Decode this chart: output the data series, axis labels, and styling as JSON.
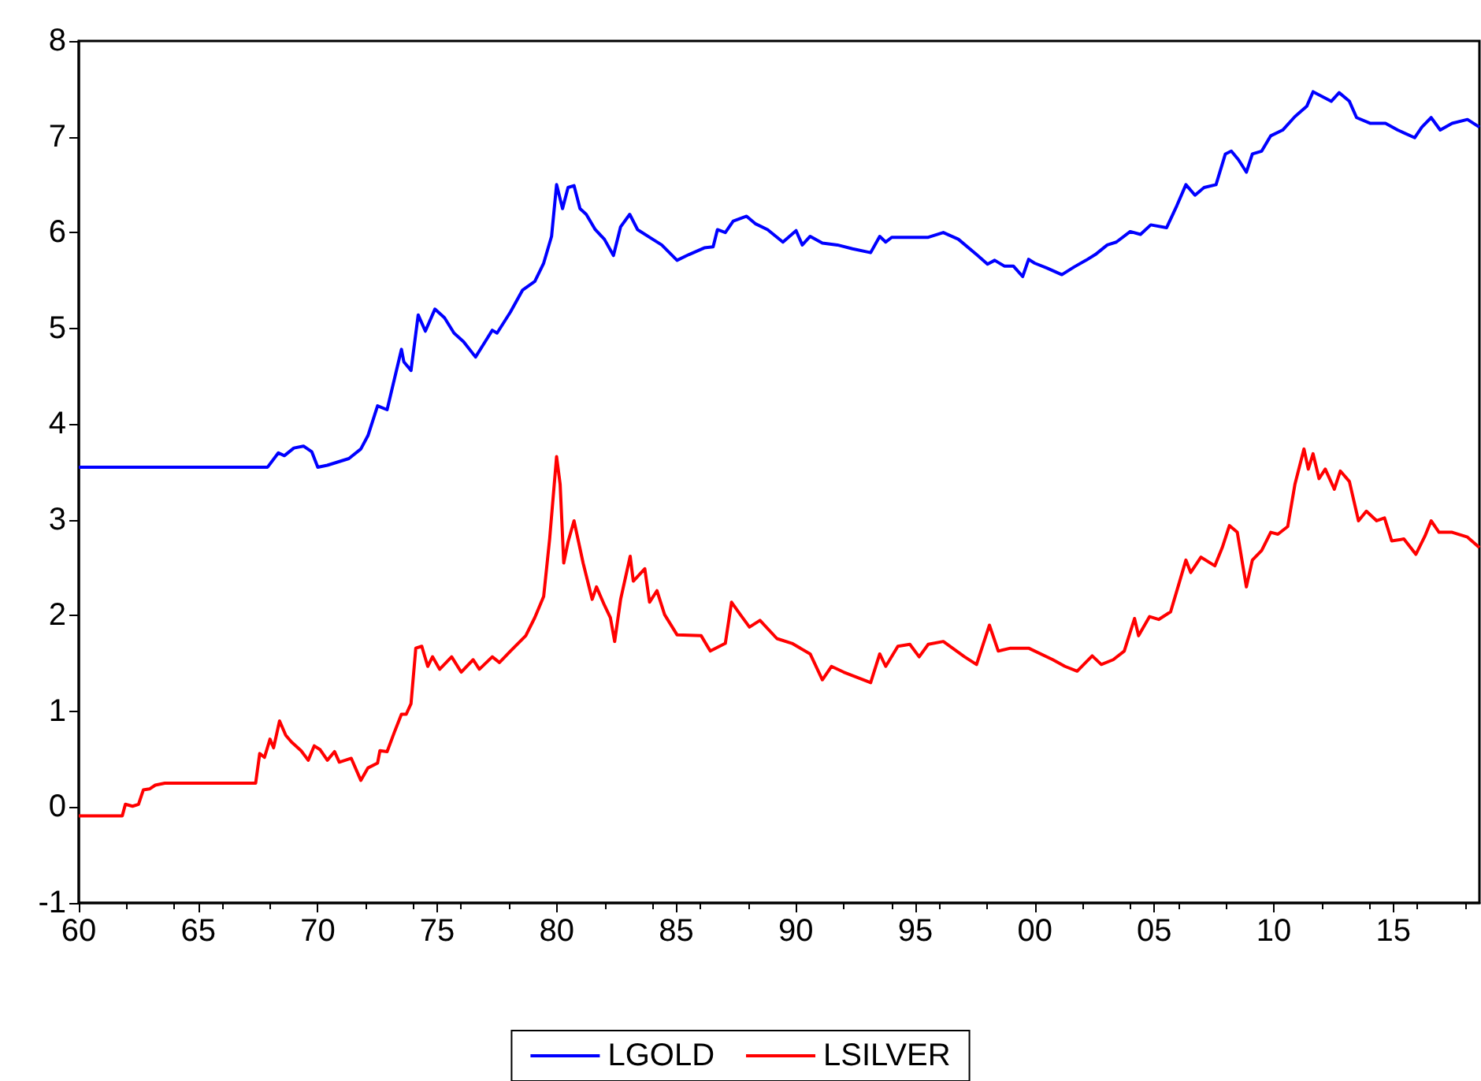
{
  "chart_data": {
    "type": "line",
    "xlim": [
      1960,
      2018.6
    ],
    "ylim": [
      -1,
      8
    ],
    "xticks": [
      {
        "value": 1960,
        "label": "60"
      },
      {
        "value": 1965,
        "label": "65"
      },
      {
        "value": 1970,
        "label": "70"
      },
      {
        "value": 1975,
        "label": "75"
      },
      {
        "value": 1980,
        "label": "80"
      },
      {
        "value": 1985,
        "label": "85"
      },
      {
        "value": 1990,
        "label": "90"
      },
      {
        "value": 1995,
        "label": "95"
      },
      {
        "value": 2000,
        "label": "00"
      },
      {
        "value": 2005,
        "label": "05"
      },
      {
        "value": 2010,
        "label": "10"
      },
      {
        "value": 2015,
        "label": "15"
      }
    ],
    "yticks": [
      -1,
      0,
      1,
      2,
      3,
      4,
      5,
      6,
      7,
      8
    ],
    "grid": false,
    "legend": "bottom",
    "marker": "none",
    "line_style": "solid",
    "series": [
      {
        "name": "LGOLD",
        "color": "#0000ff",
        "x": [
          1960,
          1967.9,
          1968.35,
          1968.6,
          1969.0,
          1969.4,
          1969.75,
          1970.0,
          1970.4,
          1971.3,
          1971.8,
          1972.1,
          1972.5,
          1972.9,
          1973.5,
          1973.6,
          1973.9,
          1974.2,
          1974.5,
          1974.9,
          1975.3,
          1975.7,
          1976.1,
          1976.6,
          1977.0,
          1977.3,
          1977.5,
          1978.06,
          1978.57,
          1979.08,
          1979.45,
          1979.78,
          1979.99,
          1980.24,
          1980.47,
          1980.72,
          1980.97,
          1981.23,
          1981.61,
          1981.99,
          1982.37,
          1982.67,
          1983.05,
          1983.38,
          1984.01,
          1984.39,
          1985.03,
          1985.53,
          1986.17,
          1986.54,
          1986.72,
          1987.05,
          1987.38,
          1987.94,
          1988.32,
          1988.82,
          1989.46,
          1990.01,
          1990.27,
          1990.6,
          1991.11,
          1991.74,
          1992.37,
          1993.13,
          1993.51,
          1993.76,
          1994.01,
          1994.77,
          1995.54,
          1996.17,
          1996.8,
          1997.56,
          1998.02,
          1998.32,
          1998.72,
          1999.1,
          1999.49,
          1999.74,
          1999.99,
          2000.5,
          2001.13,
          2001.64,
          2002.14,
          2002.53,
          2003.03,
          2003.41,
          2003.99,
          2004.42,
          2004.85,
          2005.51,
          2005.94,
          2006.32,
          2006.7,
          2007.08,
          2007.58,
          2007.97,
          2008.22,
          2008.52,
          2008.85,
          2009.1,
          2009.49,
          2009.87,
          2010.37,
          2010.88,
          2011.38,
          2011.64,
          2012.02,
          2012.4,
          2012.73,
          2013.16,
          2013.46,
          2014.04,
          2014.67,
          2015.18,
          2015.89,
          2016.19,
          2016.58,
          2016.96,
          2017.46,
          2018.1,
          2018.6
        ],
        "values": [
          3.55,
          3.55,
          3.7,
          3.67,
          3.75,
          3.77,
          3.71,
          3.55,
          3.57,
          3.64,
          3.74,
          3.88,
          4.19,
          4.15,
          4.78,
          4.65,
          4.56,
          5.14,
          4.97,
          5.2,
          5.11,
          4.95,
          4.86,
          4.7,
          4.86,
          4.98,
          4.95,
          5.17,
          5.4,
          5.49,
          5.68,
          5.96,
          6.5,
          6.25,
          6.47,
          6.49,
          6.25,
          6.19,
          6.03,
          5.93,
          5.76,
          6.06,
          6.19,
          6.03,
          5.93,
          5.87,
          5.71,
          5.77,
          5.84,
          5.85,
          6.03,
          6.0,
          6.12,
          6.17,
          6.09,
          6.03,
          5.9,
          6.02,
          5.87,
          5.96,
          5.89,
          5.87,
          5.83,
          5.79,
          5.96,
          5.9,
          5.95,
          5.95,
          5.95,
          6.0,
          5.93,
          5.77,
          5.67,
          5.71,
          5.65,
          5.65,
          5.54,
          5.72,
          5.68,
          5.63,
          5.56,
          5.64,
          5.71,
          5.77,
          5.87,
          5.9,
          6.01,
          5.98,
          6.08,
          6.05,
          6.28,
          6.5,
          6.39,
          6.47,
          6.5,
          6.82,
          6.85,
          6.76,
          6.63,
          6.82,
          6.85,
          7.01,
          7.07,
          7.21,
          7.32,
          7.47,
          7.42,
          7.37,
          7.46,
          7.37,
          7.2,
          7.14,
          7.14,
          7.07,
          6.99,
          7.1,
          7.2,
          7.07,
          7.14,
          7.18,
          7.1
        ]
      },
      {
        "name": "LSILVER",
        "color": "#ff0000",
        "x": [
          1960,
          1961.82,
          1961.95,
          1962.25,
          1962.5,
          1962.7,
          1962.96,
          1963.2,
          1963.6,
          1967.4,
          1967.57,
          1967.77,
          1968.0,
          1968.15,
          1968.4,
          1968.66,
          1968.9,
          1969.3,
          1969.6,
          1969.85,
          1970.1,
          1970.4,
          1970.7,
          1970.9,
          1971.4,
          1971.8,
          1972.1,
          1972.5,
          1972.6,
          1972.9,
          1973.2,
          1973.5,
          1973.7,
          1973.9,
          1974.1,
          1974.35,
          1974.6,
          1974.8,
          1975.1,
          1975.6,
          1976.0,
          1976.5,
          1976.76,
          1977.3,
          1977.6,
          1978.06,
          1978.7,
          1979.08,
          1979.45,
          1979.7,
          1979.99,
          1980.14,
          1980.29,
          1980.47,
          1980.72,
          1981.1,
          1981.48,
          1981.66,
          1981.99,
          1982.24,
          1982.42,
          1982.67,
          1983.07,
          1983.2,
          1983.68,
          1983.88,
          1984.19,
          1984.51,
          1985.03,
          1986.04,
          1986.42,
          1987.05,
          1987.31,
          1987.68,
          1988.06,
          1988.5,
          1989.21,
          1989.84,
          1990.6,
          1991.11,
          1991.49,
          1992.0,
          1993.13,
          1993.51,
          1993.76,
          1994.27,
          1994.77,
          1995.16,
          1995.54,
          1996.17,
          1997.06,
          1997.56,
          1998.1,
          1998.47,
          1998.98,
          1999.74,
          2000.75,
          2001.26,
          2001.77,
          2002.4,
          2002.78,
          2003.28,
          2003.74,
          2004.17,
          2004.34,
          2004.8,
          2005.18,
          2005.68,
          2006.06,
          2006.32,
          2006.52,
          2006.95,
          2007.53,
          2007.84,
          2008.14,
          2008.47,
          2008.85,
          2009.1,
          2009.49,
          2009.87,
          2010.17,
          2010.58,
          2010.88,
          2011.26,
          2011.44,
          2011.64,
          2011.89,
          2012.15,
          2012.53,
          2012.78,
          2013.16,
          2013.54,
          2013.87,
          2014.3,
          2014.63,
          2014.93,
          2015.44,
          2015.94,
          2016.32,
          2016.58,
          2016.91,
          2017.46,
          2018.1,
          2018.6
        ],
        "values": [
          -0.09,
          -0.09,
          0.03,
          0.01,
          0.03,
          0.18,
          0.19,
          0.23,
          0.25,
          0.25,
          0.56,
          0.52,
          0.71,
          0.62,
          0.9,
          0.75,
          0.68,
          0.59,
          0.49,
          0.64,
          0.6,
          0.49,
          0.58,
          0.47,
          0.51,
          0.28,
          0.41,
          0.46,
          0.59,
          0.58,
          0.78,
          0.97,
          0.97,
          1.08,
          1.66,
          1.68,
          1.47,
          1.57,
          1.44,
          1.57,
          1.41,
          1.54,
          1.44,
          1.57,
          1.51,
          1.63,
          1.79,
          1.98,
          2.2,
          2.8,
          3.66,
          3.37,
          2.55,
          2.77,
          2.99,
          2.55,
          2.17,
          2.3,
          2.11,
          1.98,
          1.73,
          2.17,
          2.62,
          2.36,
          2.49,
          2.14,
          2.26,
          2.01,
          1.8,
          1.79,
          1.63,
          1.71,
          2.14,
          2.01,
          1.88,
          1.95,
          1.76,
          1.71,
          1.6,
          1.33,
          1.47,
          1.41,
          1.3,
          1.6,
          1.47,
          1.68,
          1.7,
          1.57,
          1.7,
          1.73,
          1.57,
          1.49,
          1.9,
          1.63,
          1.66,
          1.66,
          1.54,
          1.47,
          1.42,
          1.58,
          1.49,
          1.54,
          1.63,
          1.97,
          1.79,
          1.99,
          1.96,
          2.04,
          2.36,
          2.58,
          2.45,
          2.61,
          2.52,
          2.71,
          2.94,
          2.87,
          2.3,
          2.58,
          2.68,
          2.87,
          2.85,
          2.93,
          3.37,
          3.74,
          3.53,
          3.69,
          3.43,
          3.53,
          3.32,
          3.51,
          3.4,
          2.99,
          3.09,
          2.99,
          3.02,
          2.78,
          2.8,
          2.64,
          2.83,
          2.99,
          2.87,
          2.87,
          2.82,
          2.71
        ]
      }
    ]
  }
}
